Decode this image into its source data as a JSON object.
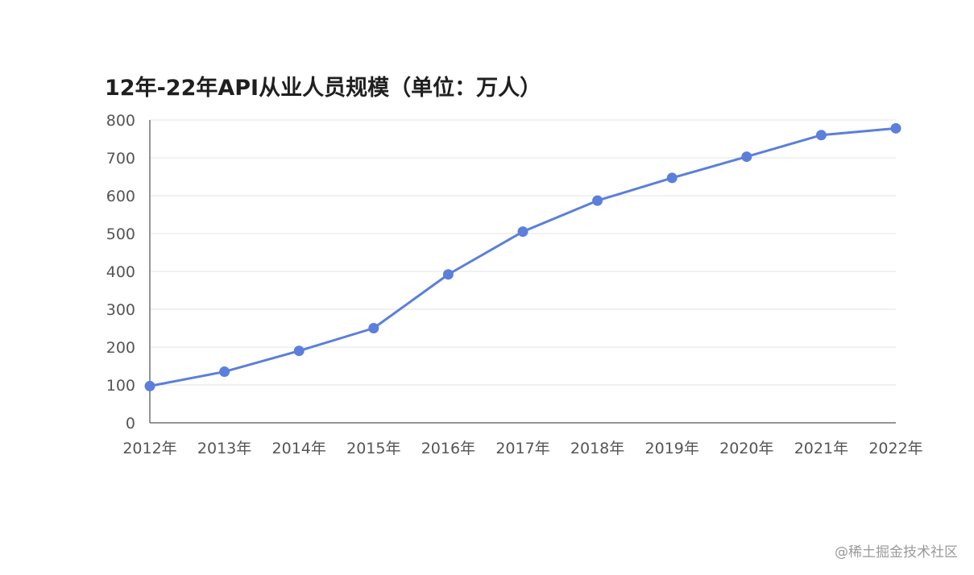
{
  "colors": {
    "series": "#5b7fdb",
    "axis": "#6e7079",
    "grid": "#e3e3e3",
    "text": "#555555",
    "title": "#1f1f1f"
  },
  "chart_data": {
    "type": "line",
    "title": "12年-22年API从业人员规模（单位：万人）",
    "xlabel": "",
    "ylabel": "",
    "categories": [
      "2012年",
      "2013年",
      "2014年",
      "2015年",
      "2016年",
      "2017年",
      "2018年",
      "2019年",
      "2020年",
      "2021年",
      "2022年"
    ],
    "series": [
      {
        "name": "API从业人员规模",
        "values": [
          97,
          135,
          190,
          250,
          392,
          505,
          587,
          647,
          703,
          760,
          778
        ]
      }
    ],
    "ylim": [
      0,
      800
    ],
    "yticks": [
      "0",
      "100",
      "200",
      "300",
      "400",
      "500",
      "600",
      "700",
      "800"
    ],
    "grid": true,
    "legend": "none"
  },
  "watermark": "@稀土掘金技术社区"
}
